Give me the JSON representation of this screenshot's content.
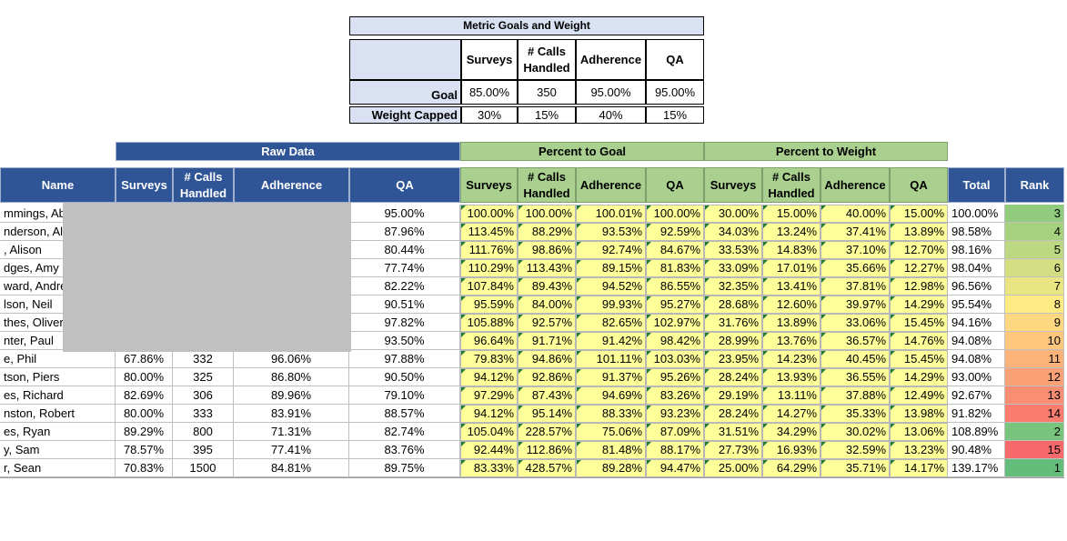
{
  "metric_goals": {
    "title": "Metric Goals and Weight",
    "columns": [
      "Surveys",
      "# Calls Handled",
      "Adherence",
      "QA"
    ],
    "goal_label": "Goal",
    "goals": [
      "85.00%",
      "350",
      "95.00%",
      "95.00%"
    ],
    "weight_label": "Weight Capped",
    "weights": [
      "30%",
      "15%",
      "40%",
      "15%"
    ]
  },
  "sections": {
    "raw": "Raw Data",
    "pct_goal": "Percent to Goal",
    "pct_weight": "Percent to Weight"
  },
  "headers": {
    "name": "Name",
    "surveys": "Surveys",
    "calls": "# Calls Handled",
    "adherence": "Adherence",
    "qa": "QA",
    "total": "Total",
    "rank": "Rank"
  },
  "rows": [
    {
      "name": "mmings, Ab",
      "surveys": "",
      "calls": "",
      "adherence": "",
      "qa": "95.00%",
      "pg": [
        "100.00%",
        "100.00%",
        "100.01%",
        "100.00%"
      ],
      "pw": [
        "30.00%",
        "15.00%",
        "40.00%",
        "15.00%"
      ],
      "total": "100.00%",
      "rank": "3"
    },
    {
      "name": "nderson, Ale",
      "surveys": "",
      "calls": "",
      "adherence": "",
      "qa": "87.96%",
      "pg": [
        "113.45%",
        "88.29%",
        "93.53%",
        "92.59%"
      ],
      "pw": [
        "34.03%",
        "13.24%",
        "37.41%",
        "13.89%"
      ],
      "total": "98.58%",
      "rank": "4"
    },
    {
      "name": ", Alison",
      "surveys": "",
      "calls": "",
      "adherence": "",
      "qa": "80.44%",
      "pg": [
        "111.76%",
        "98.86%",
        "92.74%",
        "84.67%"
      ],
      "pw": [
        "33.53%",
        "14.83%",
        "37.10%",
        "12.70%"
      ],
      "total": "98.16%",
      "rank": "5"
    },
    {
      "name": "dges, Amy",
      "surveys": "",
      "calls": "",
      "adherence": "",
      "qa": "77.74%",
      "pg": [
        "110.29%",
        "113.43%",
        "89.15%",
        "81.83%"
      ],
      "pw": [
        "33.09%",
        "17.01%",
        "35.66%",
        "12.27%"
      ],
      "total": "98.04%",
      "rank": "6"
    },
    {
      "name": "ward, Andre",
      "surveys": "",
      "calls": "",
      "adherence": "",
      "qa": "82.22%",
      "pg": [
        "107.84%",
        "89.43%",
        "94.52%",
        "86.55%"
      ],
      "pw": [
        "32.35%",
        "13.41%",
        "37.81%",
        "12.98%"
      ],
      "total": "96.56%",
      "rank": "7"
    },
    {
      "name": "lson, Neil",
      "surveys": "",
      "calls": "",
      "adherence": "",
      "qa": "90.51%",
      "pg": [
        "95.59%",
        "84.00%",
        "99.93%",
        "95.27%"
      ],
      "pw": [
        "28.68%",
        "12.60%",
        "39.97%",
        "14.29%"
      ],
      "total": "95.54%",
      "rank": "8"
    },
    {
      "name": "thes, Oliver",
      "surveys": "",
      "calls": "",
      "adherence": "",
      "qa": "97.82%",
      "pg": [
        "105.88%",
        "92.57%",
        "82.65%",
        "102.97%"
      ],
      "pw": [
        "31.76%",
        "13.89%",
        "33.06%",
        "15.45%"
      ],
      "total": "94.16%",
      "rank": "9"
    },
    {
      "name": "nter, Paul",
      "surveys": "",
      "calls": "",
      "adherence": "",
      "qa": "93.50%",
      "pg": [
        "96.64%",
        "91.71%",
        "91.42%",
        "98.42%"
      ],
      "pw": [
        "28.99%",
        "13.76%",
        "36.57%",
        "14.76%"
      ],
      "total": "94.08%",
      "rank": "10"
    },
    {
      "name": "e, Phil",
      "surveys": "67.86%",
      "calls": "332",
      "adherence": "96.06%",
      "qa": "97.88%",
      "pg": [
        "79.83%",
        "94.86%",
        "101.11%",
        "103.03%"
      ],
      "pw": [
        "23.95%",
        "14.23%",
        "40.45%",
        "15.45%"
      ],
      "total": "94.08%",
      "rank": "11"
    },
    {
      "name": "tson, Piers",
      "surveys": "80.00%",
      "calls": "325",
      "adherence": "86.80%",
      "qa": "90.50%",
      "pg": [
        "94.12%",
        "92.86%",
        "91.37%",
        "95.26%"
      ],
      "pw": [
        "28.24%",
        "13.93%",
        "36.55%",
        "14.29%"
      ],
      "total": "93.00%",
      "rank": "12"
    },
    {
      "name": "es, Richard",
      "surveys": "82.69%",
      "calls": "306",
      "adherence": "89.96%",
      "qa": "79.10%",
      "pg": [
        "97.29%",
        "87.43%",
        "94.69%",
        "83.26%"
      ],
      "pw": [
        "29.19%",
        "13.11%",
        "37.88%",
        "12.49%"
      ],
      "total": "92.67%",
      "rank": "13"
    },
    {
      "name": "nston, Robert",
      "surveys": "80.00%",
      "calls": "333",
      "adherence": "83.91%",
      "qa": "88.57%",
      "pg": [
        "94.12%",
        "95.14%",
        "88.33%",
        "93.23%"
      ],
      "pw": [
        "28.24%",
        "14.27%",
        "35.33%",
        "13.98%"
      ],
      "total": "91.82%",
      "rank": "14"
    },
    {
      "name": "es, Ryan",
      "surveys": "89.29%",
      "calls": "800",
      "adherence": "71.31%",
      "qa": "82.74%",
      "pg": [
        "105.04%",
        "228.57%",
        "75.06%",
        "87.09%"
      ],
      "pw": [
        "31.51%",
        "34.29%",
        "30.02%",
        "13.06%"
      ],
      "total": "108.89%",
      "rank": "2"
    },
    {
      "name": "y, Sam",
      "surveys": "78.57%",
      "calls": "395",
      "adherence": "77.41%",
      "qa": "83.76%",
      "pg": [
        "92.44%",
        "112.86%",
        "81.48%",
        "88.17%"
      ],
      "pw": [
        "27.73%",
        "16.93%",
        "32.59%",
        "13.23%"
      ],
      "total": "90.48%",
      "rank": "15"
    },
    {
      "name": "r, Sean",
      "surveys": "70.83%",
      "calls": "1500",
      "adherence": "84.81%",
      "qa": "89.75%",
      "pg": [
        "83.33%",
        "428.57%",
        "89.28%",
        "94.47%"
      ],
      "pw": [
        "25.00%",
        "64.29%",
        "35.71%",
        "14.17%"
      ],
      "total": "139.17%",
      "rank": "1"
    }
  ],
  "colors": {
    "header_blue": "#2f5597",
    "header_green": "#a9d08e",
    "goal_lavender": "#d9e1f2",
    "pct_yellow": "#ffff99",
    "rank_scale": [
      "#63be7b",
      "#ffeb84",
      "#f8696b"
    ]
  }
}
